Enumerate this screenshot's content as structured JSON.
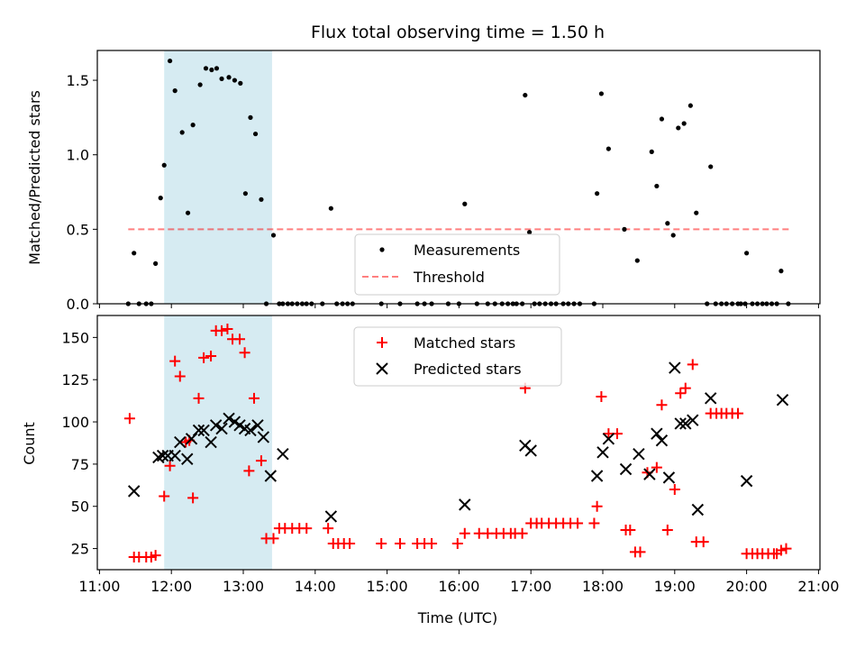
{
  "chart_data": [
    {
      "type": "scatter",
      "panel": "top",
      "title": "Flux total observing time = 1.50 h",
      "xlabel": "",
      "ylabel": "Matched/Predicted stars",
      "xlim": [
        10.97,
        21.02
      ],
      "ylim": [
        0,
        1.7
      ],
      "yticks": [
        0,
        0.5,
        1,
        1.5
      ],
      "ytick_labels": [
        "0.0",
        "0.5",
        "1.0",
        "1.5"
      ],
      "xticks": [
        11,
        12,
        13,
        14,
        15,
        16,
        17,
        18,
        19,
        20,
        21
      ],
      "shaded_interval": [
        11.9,
        13.4
      ],
      "threshold": {
        "y": 0.5,
        "x_range": [
          11.4,
          20.6
        ]
      },
      "legend": {
        "position": "lower center",
        "entries": [
          "Measurements",
          "Threshold"
        ]
      },
      "series": [
        {
          "name": "Measurements",
          "x": [
            11.4,
            11.48,
            11.55,
            11.65,
            11.72,
            11.78,
            11.85,
            11.9,
            11.98,
            12.05,
            12.15,
            12.23,
            12.3,
            12.4,
            12.48,
            12.56,
            12.63,
            12.7,
            12.8,
            12.88,
            12.96,
            13.03,
            13.1,
            13.17,
            13.25,
            13.32,
            13.42,
            13.5,
            13.55,
            13.62,
            13.68,
            13.75,
            13.82,
            13.88,
            13.95,
            14.1,
            14.22,
            14.3,
            14.38,
            14.45,
            14.52,
            14.92,
            15.18,
            15.42,
            15.52,
            15.62,
            15.85,
            16.0,
            16.08,
            16.25,
            16.4,
            16.5,
            16.6,
            16.68,
            16.75,
            16.8,
            16.88,
            16.92,
            16.98,
            17.05,
            17.12,
            17.2,
            17.28,
            17.35,
            17.45,
            17.52,
            17.6,
            17.68,
            17.88,
            17.92,
            17.98,
            18.08,
            18.3,
            18.48,
            18.68,
            18.75,
            18.82,
            18.9,
            18.98,
            19.05,
            19.13,
            19.22,
            19.3,
            19.45,
            19.5,
            19.57,
            19.65,
            19.72,
            19.8,
            19.88,
            19.92,
            19.98,
            20.0,
            20.08,
            20.15,
            20.22,
            20.28,
            20.35,
            20.42,
            20.48,
            20.58
          ],
          "y": [
            0,
            0.34,
            0,
            0,
            0,
            0.27,
            0.71,
            0.93,
            1.63,
            1.43,
            1.15,
            0.61,
            1.2,
            1.47,
            1.58,
            1.57,
            1.58,
            1.51,
            1.52,
            1.5,
            1.48,
            0.74,
            1.25,
            1.14,
            0.7,
            0,
            0.46,
            0,
            0,
            0,
            0,
            0,
            0,
            0,
            0,
            0,
            0.64,
            0,
            0,
            0,
            0,
            0,
            0,
            0,
            0,
            0,
            0,
            0,
            0.67,
            0,
            0,
            0,
            0,
            0,
            0,
            0,
            0,
            1.4,
            0.48,
            0,
            0,
            0,
            0,
            0,
            0,
            0,
            0,
            0,
            0,
            0.74,
            1.41,
            1.04,
            0.5,
            0.29,
            1.02,
            0.79,
            1.24,
            0.54,
            0.46,
            1.18,
            1.21,
            1.33,
            0.61,
            0,
            0.92,
            0,
            0,
            0,
            0,
            0,
            0,
            0,
            0.34,
            0,
            0,
            0,
            0,
            0,
            0,
            0.22,
            0
          ]
        },
        {
          "name": "Threshold",
          "x": [
            11.4,
            20.6
          ],
          "y": [
            0.5,
            0.5
          ]
        }
      ]
    },
    {
      "type": "scatter",
      "panel": "bottom",
      "title": "",
      "xlabel": "Time (UTC)",
      "ylabel": "Count",
      "xlim": [
        10.97,
        21.02
      ],
      "ylim": [
        12.5,
        163
      ],
      "yticks": [
        25,
        50,
        75,
        100,
        125,
        150
      ],
      "ytick_labels": [
        "25",
        "50",
        "75",
        "100",
        "125",
        "150"
      ],
      "xticks": [
        11,
        12,
        13,
        14,
        15,
        16,
        17,
        18,
        19,
        20,
        21
      ],
      "xtick_labels": [
        "11:00",
        "12:00",
        "13:00",
        "14:00",
        "15:00",
        "16:00",
        "17:00",
        "18:00",
        "19:00",
        "20:00",
        "21:00"
      ],
      "shaded_interval": [
        11.9,
        13.4
      ],
      "legend": {
        "position": "upper center",
        "entries": [
          "Matched stars",
          "Predicted stars"
        ]
      },
      "series": [
        {
          "name": "Matched stars",
          "color": "#ff0000",
          "marker": "+",
          "x": [
            11.42,
            11.48,
            11.55,
            11.65,
            11.72,
            11.78,
            11.9,
            11.98,
            12.05,
            12.12,
            12.2,
            12.25,
            12.3,
            12.38,
            12.45,
            12.55,
            12.62,
            12.7,
            12.78,
            12.85,
            12.95,
            13.02,
            13.08,
            13.15,
            13.25,
            13.32,
            13.42,
            13.5,
            13.58,
            13.68,
            13.78,
            13.88,
            14.18,
            14.25,
            14.32,
            14.4,
            14.48,
            14.92,
            15.18,
            15.42,
            15.52,
            15.62,
            15.98,
            16.08,
            16.28,
            16.4,
            16.52,
            16.62,
            16.72,
            16.78,
            16.88,
            16.92,
            17.0,
            17.08,
            17.15,
            17.25,
            17.35,
            17.45,
            17.55,
            17.65,
            17.88,
            17.92,
            17.98,
            18.08,
            18.2,
            18.32,
            18.38,
            18.45,
            18.52,
            18.62,
            18.75,
            18.82,
            18.9,
            19.0,
            19.08,
            19.15,
            19.25,
            19.3,
            19.4,
            19.5,
            19.58,
            19.65,
            19.72,
            19.8,
            19.88,
            20.0,
            20.08,
            20.15,
            20.22,
            20.3,
            20.38,
            20.42,
            20.48,
            20.55
          ],
          "y": [
            102,
            20,
            20,
            20,
            20,
            21,
            56,
            74,
            136,
            127,
            88,
            89,
            55,
            114,
            138,
            139,
            154,
            154,
            155,
            149,
            149,
            141,
            71,
            114,
            77,
            31,
            31,
            37,
            37,
            37,
            37,
            37,
            37,
            28,
            28,
            28,
            28,
            28,
            28,
            28,
            28,
            28,
            28,
            34,
            34,
            34,
            34,
            34,
            34,
            34,
            34,
            120,
            40,
            40,
            40,
            40,
            40,
            40,
            40,
            40,
            40,
            50,
            115,
            93,
            93,
            36,
            36,
            23,
            23,
            70,
            73,
            110,
            36,
            60,
            117,
            120,
            134,
            29,
            29,
            105,
            105,
            105,
            105,
            105,
            105,
            22,
            22,
            22,
            22,
            22,
            22,
            22,
            24,
            25
          ]
        },
        {
          "name": "Predicted stars",
          "color": "#000000",
          "marker": "x",
          "x": [
            11.48,
            11.82,
            11.88,
            11.95,
            12.05,
            12.12,
            12.22,
            12.28,
            12.38,
            12.45,
            12.55,
            12.62,
            12.7,
            12.8,
            12.88,
            12.95,
            13.02,
            13.1,
            13.2,
            13.28,
            13.38,
            13.55,
            14.22,
            16.08,
            16.92,
            17.0,
            17.92,
            18.0,
            18.08,
            18.32,
            18.5,
            18.65,
            18.75,
            18.82,
            18.92,
            19.0,
            19.08,
            19.15,
            19.25,
            19.32,
            19.5,
            20.0,
            20.5
          ],
          "y": [
            59,
            79,
            80,
            80,
            80,
            88,
            78,
            90,
            95,
            95,
            88,
            98,
            96,
            102,
            100,
            98,
            96,
            95,
            98,
            91,
            68,
            81,
            44,
            51,
            86,
            83,
            68,
            82,
            90,
            72,
            81,
            69,
            93,
            89,
            67,
            132,
            99,
            99,
            101,
            48,
            114,
            65,
            113
          ]
        }
      ]
    }
  ]
}
